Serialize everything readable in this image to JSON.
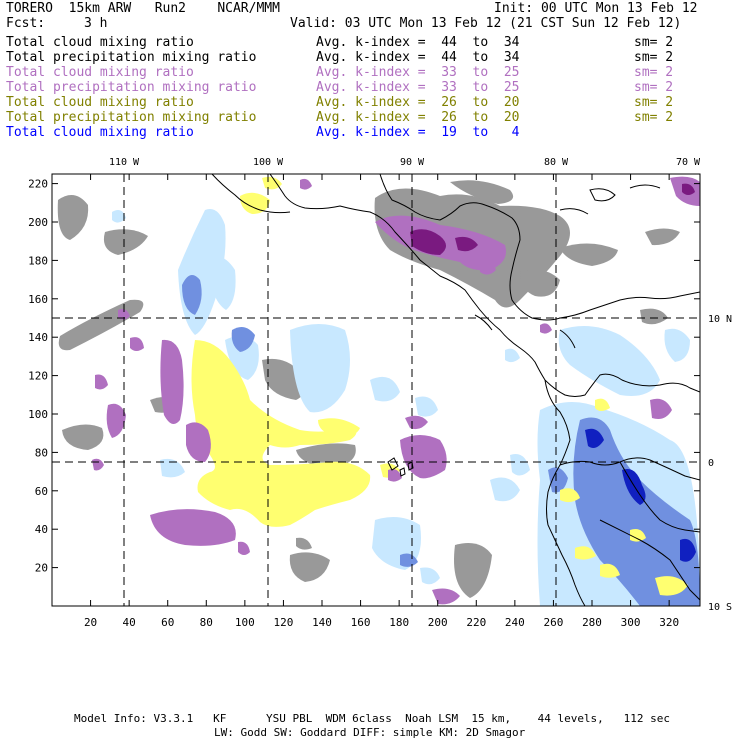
{
  "header": {
    "title_left": "TORERO  15km ARW   Run2    NCAR/MMM",
    "init": "Init: 00 UTC Mon 13 Feb 12",
    "fcst_label": "Fcst:",
    "fcst_value": "3 h",
    "valid": "Valid: 03 UTC Mon 13 Feb 12 (21 CST Sun 12 Feb 12)"
  },
  "legend": [
    {
      "field": "Total cloud mixing ratio",
      "index": "Avg. k-index =  44  to  34",
      "sm": "sm= 2",
      "color": "#000000"
    },
    {
      "field": "Total precipitation mixing ratio",
      "index": "Avg. k-index =  44  to  34",
      "sm": "sm= 2",
      "color": "#000000"
    },
    {
      "field": "Total cloud mixing ratio",
      "index": "Avg. k-index =  33  to  25",
      "sm": "sm= 2",
      "color": "#b070c0"
    },
    {
      "field": "Total precipitation mixing ratio",
      "index": "Avg. k-index =  33  to  25",
      "sm": "sm= 2",
      "color": "#b070c0"
    },
    {
      "field": "Total cloud mixing ratio",
      "index": "Avg. k-index =  26  to  20",
      "sm": "sm= 2",
      "color": "#808000"
    },
    {
      "field": "Total precipitation mixing ratio",
      "index": "Avg. k-index =  26  to  20",
      "sm": "sm= 2",
      "color": "#808000"
    },
    {
      "field": "Total cloud mixing ratio",
      "index": "Avg. k-index =  19  to   4",
      "sm": "",
      "color": "#0000ff"
    }
  ],
  "axes": {
    "top_lon_labels": [
      "110 W",
      "100 W",
      "90 W",
      "80 W",
      "70 W"
    ],
    "right_lat_labels": [
      "10 N",
      "0",
      "10 S"
    ],
    "y_ticks": [
      "220",
      "200",
      "180",
      "160",
      "140",
      "120",
      "100",
      "80",
      "60",
      "40",
      "20"
    ],
    "x_ticks": [
      "20",
      "40",
      "60",
      "80",
      "100",
      "120",
      "140",
      "160",
      "180",
      "200",
      "220",
      "240",
      "260",
      "280",
      "300",
      "320"
    ],
    "x_range": [
      0,
      336
    ],
    "y_range": [
      0,
      225
    ]
  },
  "footer": {
    "line1": "Model Info: V3.3.1   KF      YSU PBL  WDM 6class  Noah LSM  15 km,    44 levels,   112 sec",
    "line2": "LW: Godd SW: Goddard DIFF: simple KM: 2D Smagor"
  },
  "colors": {
    "gray": "#999999",
    "lightblue": "#c8e8ff",
    "blue": "#7090e0",
    "darkblue": "#1020c0",
    "violet": "#b070c0",
    "darkviolet": "#7a1a80",
    "yellow": "#ffff70"
  }
}
